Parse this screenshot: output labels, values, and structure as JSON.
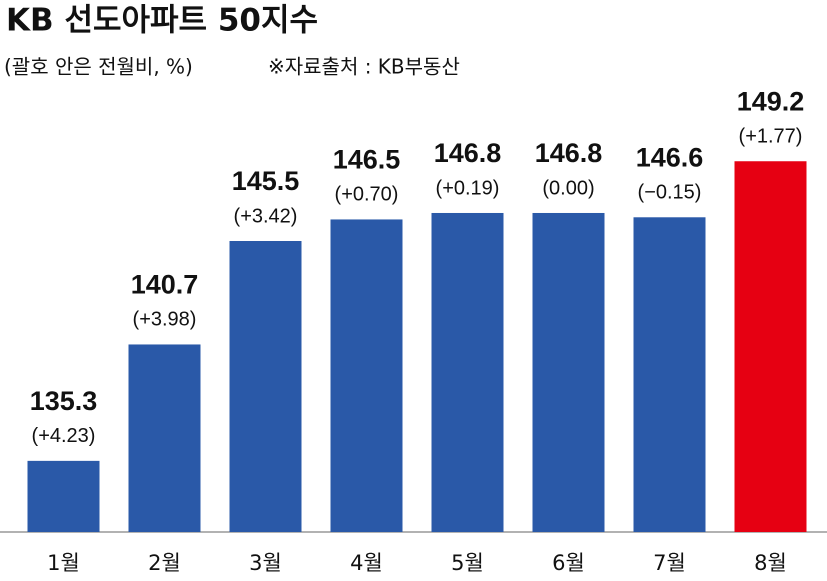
{
  "chart_data": {
    "type": "bar",
    "title": "KB 선도아파트 50지수",
    "subtitle": "(괄호 안은 전월비, %)",
    "source": "※자료출처 : KB부동산",
    "categories": [
      "1월",
      "2월",
      "3월",
      "4월",
      "5월",
      "6월",
      "7월",
      "8월"
    ],
    "values": [
      135.3,
      140.7,
      145.5,
      146.5,
      146.8,
      146.8,
      146.6,
      149.2
    ],
    "annotations": [
      "(+4.23)",
      "(+3.98)",
      "(+3.42)",
      "(+0.70)",
      "(+0.19)",
      "(0.00)",
      "(−0.15)",
      "(+1.77)"
    ],
    "colors": [
      "#2a59a8",
      "#2a59a8",
      "#2a59a8",
      "#2a59a8",
      "#2a59a8",
      "#2a59a8",
      "#2a59a8",
      "#e60012"
    ],
    "ylim": [
      132,
      150
    ]
  }
}
